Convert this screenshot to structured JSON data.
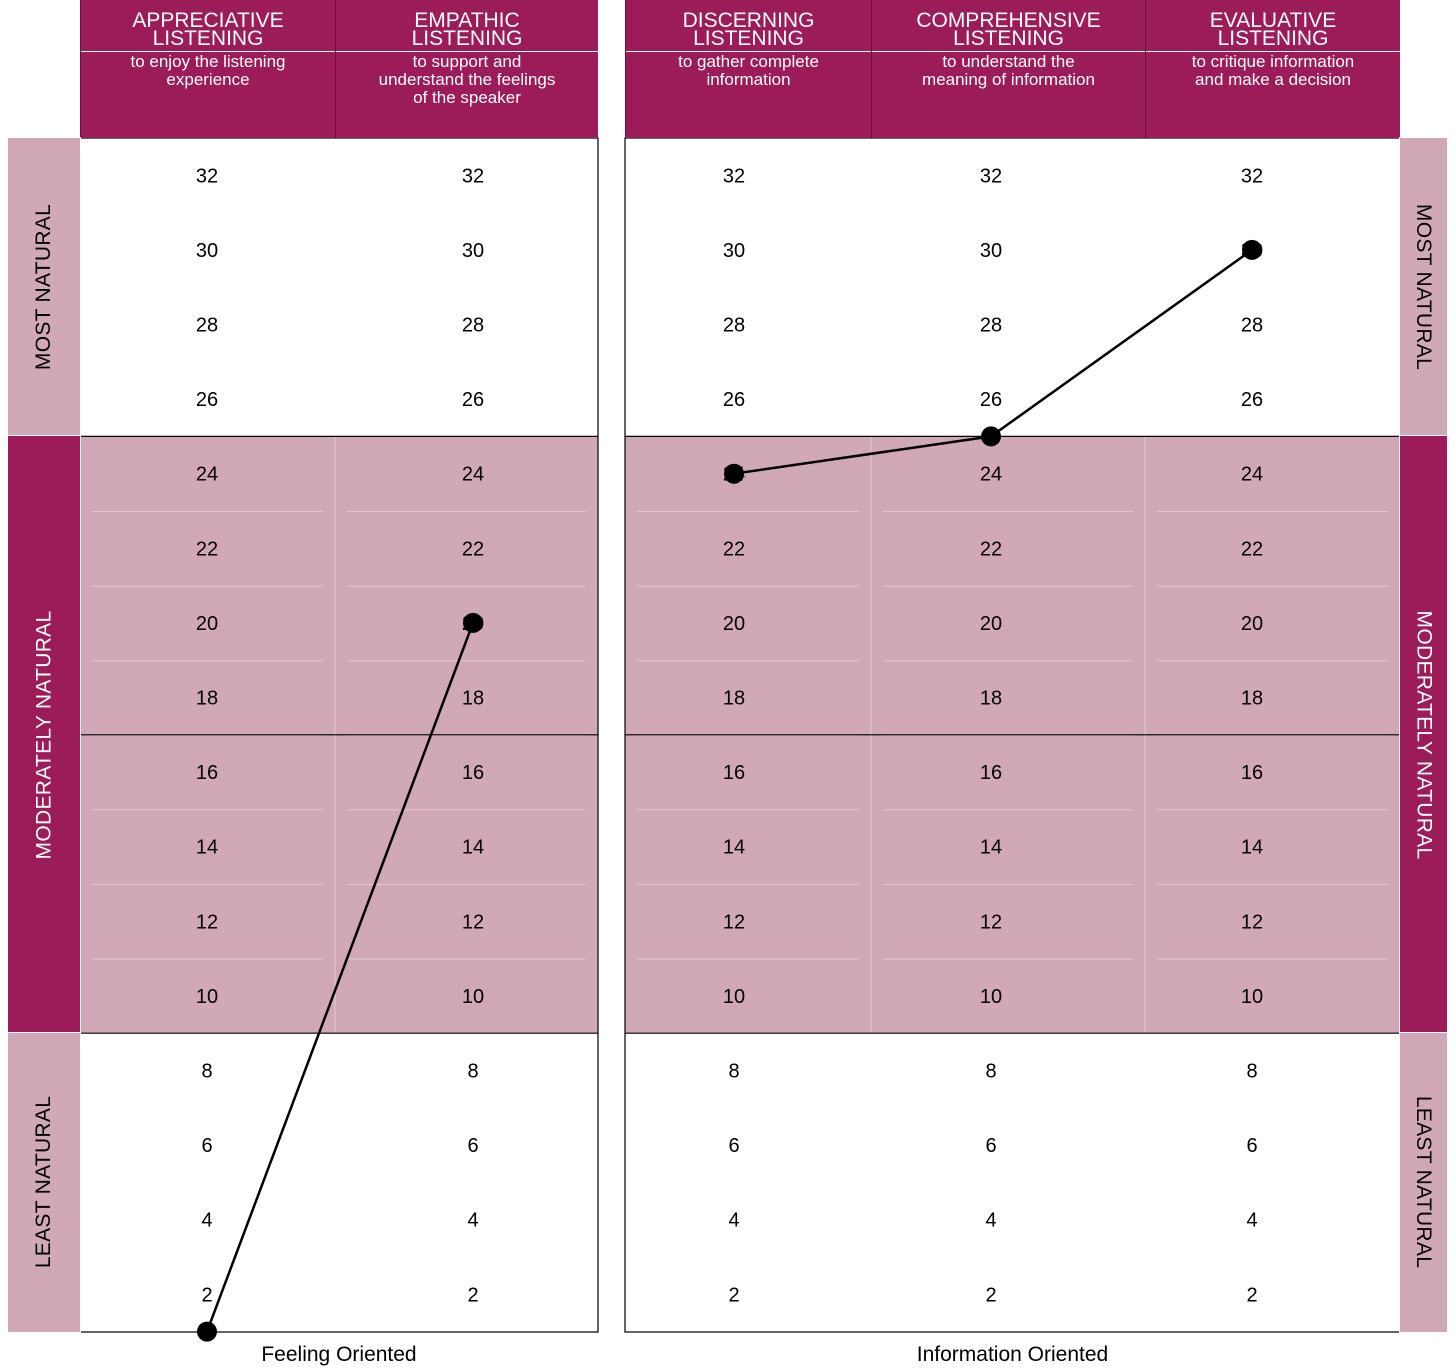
{
  "colors": {
    "header": "#9c1b59",
    "band": "#d0a8b8",
    "side_light": "#d0a8b8",
    "side_dark": "#9c1b59",
    "line": "#000000"
  },
  "panels": [
    {
      "footer": "Feeling Oriented",
      "columns": [
        {
          "title": "APPRECIATIVE LISTENING",
          "title_lines": [
            "APPRECIATIVE",
            "LISTENING"
          ],
          "subtitle": "to enjoy the listening experience",
          "subtitle_lines": [
            "to enjoy the listening",
            "experience"
          ]
        },
        {
          "title": "EMPATHIC LISTENING",
          "title_lines": [
            "EMPATHIC",
            "LISTENING"
          ],
          "subtitle": "to support and understand the feelings of the speaker",
          "subtitle_lines": [
            "to support and",
            "understand the feelings",
            "of the speaker"
          ]
        }
      ]
    },
    {
      "footer": "Information Oriented",
      "columns": [
        {
          "title": "DISCERNING LISTENING",
          "title_lines": [
            "DISCERNING",
            "LISTENING"
          ],
          "subtitle": "to gather complete information",
          "subtitle_lines": [
            "to gather complete",
            "information"
          ]
        },
        {
          "title": "COMPREHENSIVE LISTENING",
          "title_lines": [
            "COMPREHENSIVE",
            "LISTENING"
          ],
          "subtitle": "to understand the meaning of information",
          "subtitle_lines": [
            "to understand the",
            "meaning of information"
          ]
        },
        {
          "title": "EVALUATIVE LISTENING",
          "title_lines": [
            "EVALUATIVE",
            "LISTENING"
          ],
          "subtitle": "to critique information and make a decision",
          "subtitle_lines": [
            "to critique information",
            "and make a decision"
          ]
        }
      ]
    }
  ],
  "zones": {
    "left": [
      {
        "label": "MOST NATURAL",
        "from": 25,
        "to": 33,
        "style": "light"
      },
      {
        "label": "MODERATELY NATURAL",
        "from": 9,
        "to": 25,
        "style": "dark"
      },
      {
        "label": "LEAST NATURAL",
        "from": 1,
        "to": 9,
        "style": "light"
      }
    ],
    "right": [
      {
        "label": "MOST NATURAL",
        "from": 25,
        "to": 33,
        "style": "light"
      },
      {
        "label": "MODERATELY NATURAL",
        "from": 9,
        "to": 25,
        "style": "dark"
      },
      {
        "label": "LEAST NATURAL",
        "from": 1,
        "to": 9,
        "style": "light"
      }
    ]
  },
  "chart_data": {
    "type": "line",
    "scale_ticks": [
      32,
      30,
      28,
      26,
      24,
      22,
      20,
      18,
      16,
      14,
      12,
      10,
      8,
      6,
      4,
      2
    ],
    "shaded_band": [
      9,
      25
    ],
    "categories": [
      "APPRECIATIVE LISTENING",
      "EMPATHIC LISTENING",
      "DISCERNING LISTENING",
      "COMPREHENSIVE LISTENING",
      "EVALUATIVE LISTENING"
    ],
    "series": [
      {
        "panel": 0,
        "points": [
          [
            0,
            1
          ],
          [
            1,
            20
          ]
        ]
      },
      {
        "panel": 1,
        "points": [
          [
            0,
            24
          ],
          [
            1,
            25
          ],
          [
            2,
            30
          ]
        ]
      }
    ],
    "ylim": [
      1,
      33
    ]
  }
}
